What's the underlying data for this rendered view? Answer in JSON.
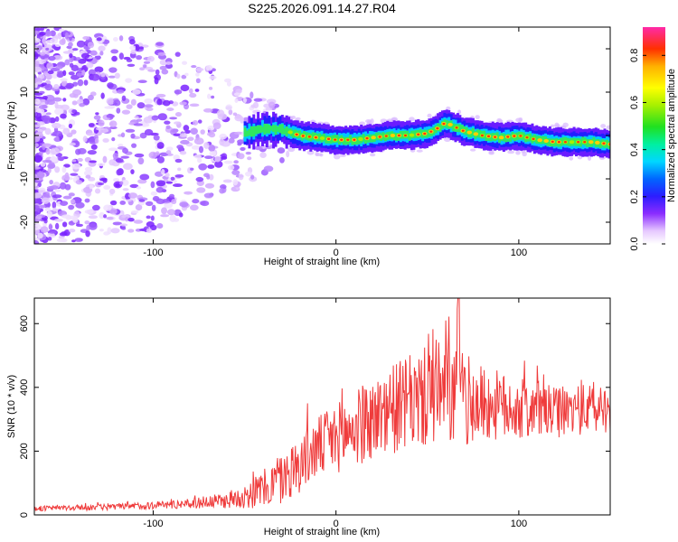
{
  "figure": {
    "title": "S225.2026.091.14.27.R04"
  },
  "chart_data": [
    {
      "type": "heatmap",
      "xlabel": "Height of straight line (km)",
      "ylabel": "Frequency (Hz)",
      "xlim": [
        -165,
        150
      ],
      "ylim": [
        -25,
        25
      ],
      "xticks": [
        -100,
        0,
        100
      ],
      "yticks": [
        -20,
        -10,
        0,
        10,
        20
      ],
      "ridge": {
        "description_points_x": [
          -50,
          -40,
          -30,
          -20,
          -10,
          0,
          10,
          20,
          30,
          40,
          50,
          55,
          60,
          70,
          80,
          90,
          100,
          110,
          120,
          130,
          140,
          150
        ],
        "frequency_hz": [
          0.5,
          1.5,
          1.5,
          0,
          -0.5,
          -1,
          -1,
          -0.5,
          0,
          0,
          0.5,
          1.5,
          3,
          1,
          0,
          -0.5,
          0,
          -1,
          -1.5,
          -1.5,
          -1.5,
          -2
        ]
      },
      "colorbar": {
        "label": "Normalized spectral amplitude",
        "range": [
          0,
          0.92
        ],
        "ticks": [
          0.0,
          0.2,
          0.4,
          0.6,
          0.8
        ]
      }
    },
    {
      "type": "line",
      "xlabel": "Height of straight line (km)",
      "ylabel": "SNR (10 * v/v)",
      "xlim": [
        -165,
        150
      ],
      "ylim": [
        0,
        680
      ],
      "xticks": [
        -100,
        0,
        100
      ],
      "yticks": [
        0,
        200,
        400,
        600
      ],
      "color": "#ef3b3b",
      "envelope_x": [
        -165,
        -120,
        -80,
        -60,
        -50,
        -40,
        -30,
        -20,
        -10,
        0,
        10,
        20,
        30,
        40,
        50,
        60,
        70,
        80,
        90,
        100,
        110,
        120,
        130,
        140,
        150
      ],
      "envelope_mean": [
        20,
        25,
        35,
        45,
        60,
        80,
        110,
        160,
        210,
        240,
        270,
        300,
        330,
        350,
        370,
        380,
        360,
        350,
        340,
        330,
        330,
        320,
        330,
        330,
        340
      ],
      "envelope_spread": [
        8,
        10,
        15,
        25,
        40,
        60,
        80,
        90,
        100,
        110,
        120,
        130,
        140,
        150,
        160,
        170,
        150,
        120,
        110,
        100,
        90,
        80,
        80,
        80,
        80
      ],
      "peak": {
        "x": 67,
        "y": 680
      }
    }
  ]
}
